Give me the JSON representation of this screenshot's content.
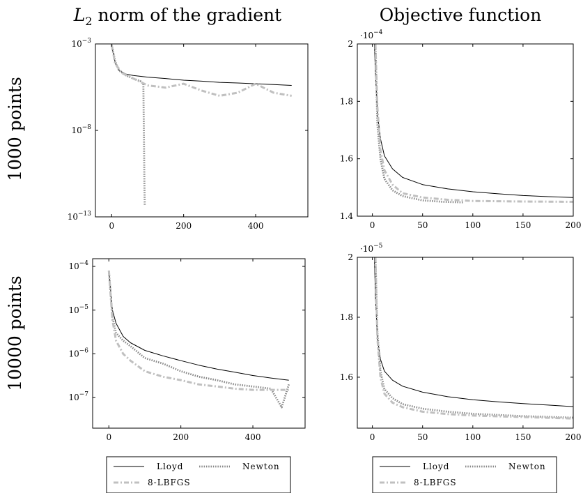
{
  "figure": {
    "col_titles": {
      "left_italic": "L",
      "left_sub": "2",
      "left_rest": " norm of the gradient",
      "right": "Objective function"
    },
    "row_labels": [
      "1000 points",
      "10000 points"
    ],
    "legend": [
      {
        "label": "Lloyd",
        "style": "solid",
        "color": "#000000"
      },
      {
        "label": "Newton",
        "style": "dotted",
        "color": "#888888"
      },
      {
        "label": "8-LBFGS",
        "style": "dashdot",
        "color": "#c0c0c0"
      }
    ]
  },
  "chart_data": [
    {
      "type": "line",
      "title": "",
      "xlabel": "",
      "ylabel": "",
      "y_scale": "log",
      "xlim": [
        -45,
        545
      ],
      "ylim": [
        1e-13,
        0.001
      ],
      "xticks": [
        0,
        200,
        400
      ],
      "xtick_labels": [
        "0",
        "200",
        "400"
      ],
      "yticks": [
        1e-13,
        1e-08,
        0.001
      ],
      "ytick_labels": [
        {
          "base": "10",
          "exp": "−13"
        },
        {
          "base": "10",
          "exp": "−8"
        },
        {
          "base": "10",
          "exp": "−3"
        }
      ],
      "series": [
        {
          "name": "Lloyd",
          "style": "solid",
          "x": [
            0,
            10,
            20,
            40,
            60,
            100,
            150,
            200,
            250,
            300,
            350,
            400,
            450,
            500
          ],
          "y": [
            0.0008,
            8e-05,
            3e-05,
            1.8e-05,
            1.5e-05,
            1.2e-05,
            1e-05,
            8e-06,
            7e-06,
            6e-06,
            5.5e-06,
            5e-06,
            4.5e-06,
            4e-06
          ]
        },
        {
          "name": "Newton",
          "style": "dotted",
          "x": [
            0,
            10,
            20,
            40,
            60,
            80,
            88,
            90,
            91,
            92
          ],
          "y": [
            0.0009,
            0.0001,
            3e-05,
            1.5e-05,
            1e-05,
            7e-06,
            5e-06,
            1e-09,
            1e-11,
            5e-13
          ]
        },
        {
          "name": "8-LBFGS",
          "style": "dashdot",
          "x": [
            0,
            10,
            30,
            60,
            100,
            150,
            200,
            250,
            300,
            350,
            400,
            450,
            500
          ],
          "y": [
            0.0009,
            7e-05,
            2e-05,
            1e-05,
            4e-06,
            3e-06,
            5e-06,
            2e-06,
            1e-06,
            1.5e-06,
            5e-06,
            1.5e-06,
            1e-06
          ]
        }
      ]
    },
    {
      "type": "line",
      "title": "",
      "xlabel": "",
      "ylabel": "",
      "y_multiplier": {
        "base": "10",
        "exp": "−4",
        "prefix": "·"
      },
      "xlim": [
        -15,
        200
      ],
      "ylim": [
        1.4,
        2.0
      ],
      "xticks": [
        0,
        50,
        100,
        150,
        200
      ],
      "xtick_labels": [
        "0",
        "50",
        "100",
        "150",
        "200"
      ],
      "yticks": [
        1.4,
        1.6,
        1.8,
        2.0
      ],
      "ytick_labels": [
        "1.4",
        "1.6",
        "1.8",
        "2"
      ],
      "series": [
        {
          "name": "Lloyd",
          "style": "solid",
          "x": [
            2,
            3,
            5,
            8,
            12,
            20,
            30,
            50,
            75,
            100,
            125,
            150,
            175,
            200
          ],
          "y": [
            2.0,
            1.9,
            1.76,
            1.67,
            1.61,
            1.565,
            1.535,
            1.51,
            1.495,
            1.485,
            1.478,
            1.472,
            1.468,
            1.465
          ]
        },
        {
          "name": "Newton",
          "style": "dotted",
          "x": [
            3,
            5,
            8,
            12,
            20,
            30,
            50,
            70,
            90
          ],
          "y": [
            2.0,
            1.72,
            1.6,
            1.53,
            1.49,
            1.47,
            1.455,
            1.45,
            1.448
          ]
        },
        {
          "name": "8-LBFGS",
          "style": "dashdot",
          "x": [
            3,
            5,
            8,
            12,
            20,
            30,
            50,
            75,
            100,
            150,
            200
          ],
          "y": [
            2.0,
            1.78,
            1.63,
            1.56,
            1.51,
            1.48,
            1.465,
            1.457,
            1.453,
            1.451,
            1.45
          ]
        }
      ]
    },
    {
      "type": "line",
      "title": "",
      "xlabel": "",
      "ylabel": "",
      "y_scale": "log",
      "xlim": [
        -45,
        545
      ],
      "ylim": [
        2e-08,
        0.00015
      ],
      "xticks": [
        0,
        200,
        400
      ],
      "xtick_labels": [
        "0",
        "200",
        "400"
      ],
      "yticks": [
        1e-07,
        1e-06,
        1e-05,
        0.0001
      ],
      "ytick_labels": [
        {
          "base": "10",
          "exp": "−7"
        },
        {
          "base": "10",
          "exp": "−6"
        },
        {
          "base": "10",
          "exp": "−5"
        },
        {
          "base": "10",
          "exp": "−4"
        }
      ],
      "series": [
        {
          "name": "Lloyd",
          "style": "solid",
          "x": [
            0,
            10,
            20,
            40,
            60,
            100,
            150,
            200,
            250,
            300,
            350,
            400,
            450,
            500
          ],
          "y": [
            8e-05,
            1e-05,
            5e-06,
            2.5e-06,
            1.8e-06,
            1.2e-06,
            9e-07,
            7e-07,
            5.5e-07,
            4.5e-07,
            3.8e-07,
            3.2e-07,
            2.8e-07,
            2.5e-07
          ]
        },
        {
          "name": "Newton",
          "style": "dotted",
          "x": [
            0,
            10,
            20,
            40,
            60,
            100,
            150,
            200,
            250,
            300,
            350,
            400,
            450,
            480,
            500
          ],
          "y": [
            8e-05,
            7e-06,
            3e-06,
            2e-06,
            1.5e-06,
            8e-07,
            6e-07,
            4e-07,
            3e-07,
            2.5e-07,
            2e-07,
            1.8e-07,
            1.6e-07,
            6e-08,
            2e-07
          ]
        },
        {
          "name": "8-LBFGS",
          "style": "dashdot",
          "x": [
            0,
            10,
            20,
            40,
            60,
            100,
            150,
            200,
            250,
            300,
            350,
            400,
            450,
            500
          ],
          "y": [
            8e-05,
            6e-06,
            2e-06,
            1e-06,
            7e-07,
            4e-07,
            3e-07,
            2.5e-07,
            2e-07,
            1.8e-07,
            1.6e-07,
            1.5e-07,
            1.5e-07,
            1.5e-07
          ]
        }
      ]
    },
    {
      "type": "line",
      "title": "",
      "xlabel": "",
      "ylabel": "",
      "y_multiplier": {
        "base": "10",
        "exp": "−5",
        "prefix": "·"
      },
      "xlim": [
        -15,
        200
      ],
      "ylim": [
        1.43,
        2.0
      ],
      "xticks": [
        0,
        50,
        100,
        150,
        200
      ],
      "xtick_labels": [
        "0",
        "50",
        "100",
        "150",
        "200"
      ],
      "yticks": [
        1.6,
        1.8,
        2.0
      ],
      "ytick_labels": [
        "1.6",
        "1.8",
        "2"
      ],
      "series": [
        {
          "name": "Lloyd",
          "style": "solid",
          "x": [
            2,
            3,
            5,
            8,
            12,
            20,
            30,
            50,
            75,
            100,
            125,
            150,
            175,
            200
          ],
          "y": [
            2.0,
            1.87,
            1.73,
            1.66,
            1.62,
            1.59,
            1.57,
            1.55,
            1.535,
            1.525,
            1.518,
            1.512,
            1.507,
            1.502
          ]
        },
        {
          "name": "Newton",
          "style": "dotted",
          "x": [
            3,
            5,
            8,
            12,
            20,
            30,
            50,
            75,
            100,
            150,
            200
          ],
          "y": [
            2.0,
            1.75,
            1.62,
            1.56,
            1.53,
            1.51,
            1.495,
            1.485,
            1.478,
            1.47,
            1.465
          ]
        },
        {
          "name": "8-LBFGS",
          "style": "dashdot",
          "x": [
            3,
            5,
            8,
            12,
            20,
            30,
            50,
            75,
            100,
            150,
            200
          ],
          "y": [
            2.0,
            1.73,
            1.6,
            1.545,
            1.515,
            1.5,
            1.485,
            1.477,
            1.472,
            1.467,
            1.462
          ]
        }
      ]
    }
  ]
}
